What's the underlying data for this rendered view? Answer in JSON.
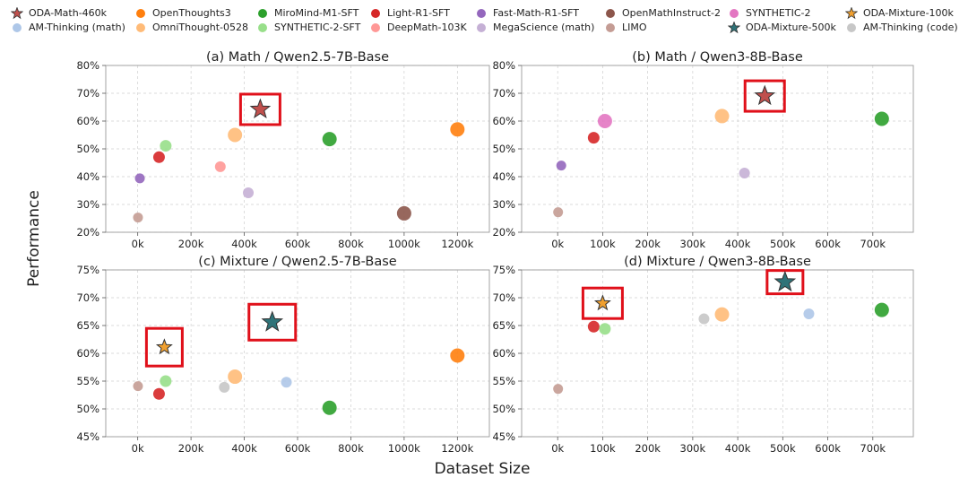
{
  "figure": {
    "ylabel": "Performance",
    "xlabel": "Dataset Size"
  },
  "legend": [
    {
      "label": "ODA-Math-460k",
      "marker": "star",
      "color": "#c0504d"
    },
    {
      "label": "AM-Thinking (math)",
      "marker": "circle",
      "color": "#aec7e8"
    },
    {
      "label": "OpenThoughts3",
      "marker": "circle",
      "color": "#ff7f0e"
    },
    {
      "label": "OmniThought-0528",
      "marker": "circle",
      "color": "#ffbb78"
    },
    {
      "label": "MiroMind-M1-SFT",
      "marker": "circle",
      "color": "#2ca02c"
    },
    {
      "label": "SYNTHETIC-2-SFT",
      "marker": "circle",
      "color": "#98df8a"
    },
    {
      "label": "Light-R1-SFT",
      "marker": "circle",
      "color": "#d62728"
    },
    {
      "label": "DeepMath-103K",
      "marker": "circle",
      "color": "#ff9896"
    },
    {
      "label": "Fast-Math-R1-SFT",
      "marker": "circle",
      "color": "#9467bd"
    },
    {
      "label": "MegaScience (math)",
      "marker": "circle",
      "color": "#c5b0d5"
    },
    {
      "label": "OpenMathInstruct-2",
      "marker": "circle",
      "color": "#8c564b"
    },
    {
      "label": "LIMO",
      "marker": "circle",
      "color": "#c49c94"
    },
    {
      "label": "SYNTHETIC-2",
      "marker": "circle",
      "color": "#e377c2"
    },
    {
      "label": "ODA-Mixture-500k",
      "marker": "star",
      "color": "#2f7378"
    },
    {
      "label": "ODA-Mixture-100k",
      "marker": "star",
      "color": "#f0a030"
    },
    {
      "label": "AM-Thinking (code)",
      "marker": "circle",
      "color": "#c7c7c7"
    }
  ],
  "chart_data": [
    {
      "type": "scatter",
      "title": "(a) Math / Qwen2.5-7B-Base",
      "xlabel": "Dataset Size",
      "ylabel": "Performance",
      "xlim": [
        -120000,
        1320000
      ],
      "ylim": [
        20,
        80
      ],
      "xticks": [
        0,
        200000,
        400000,
        600000,
        800000,
        1000000,
        1200000
      ],
      "xtick_labels": [
        "0k",
        "200k",
        "400k",
        "600k",
        "800k",
        "1000k",
        "1200k"
      ],
      "yticks": [
        20,
        30,
        40,
        50,
        60,
        70,
        80
      ],
      "ytick_labels": [
        "20%",
        "30%",
        "40%",
        "50%",
        "60%",
        "70%",
        "80%"
      ],
      "grid": true,
      "points": [
        {
          "name": "LIMO",
          "x": 1000,
          "y": 25.3
        },
        {
          "name": "Fast-Math-R1-SFT",
          "x": 8000,
          "y": 39.4
        },
        {
          "name": "Light-R1-SFT",
          "x": 80000,
          "y": 47.0
        },
        {
          "name": "SYNTHETIC-2-SFT",
          "x": 105000,
          "y": 51.1
        },
        {
          "name": "DeepMath-103K",
          "x": 310000,
          "y": 43.6
        },
        {
          "name": "OmniThought-0528",
          "x": 365000,
          "y": 55.0
        },
        {
          "name": "MegaScience (math)",
          "x": 415000,
          "y": 34.2
        },
        {
          "name": "ODA-Math-460k",
          "x": 460000,
          "y": 64.2,
          "highlight": true
        },
        {
          "name": "MiroMind-M1-SFT",
          "x": 720000,
          "y": 53.5
        },
        {
          "name": "OpenMathInstruct-2",
          "x": 1000000,
          "y": 26.8
        },
        {
          "name": "OpenThoughts3",
          "x": 1200000,
          "y": 57.0
        }
      ]
    },
    {
      "type": "scatter",
      "title": "(b) Math / Qwen3-8B-Base",
      "xlabel": "Dataset Size",
      "ylabel": "Performance",
      "xlim": [
        -80000,
        790000
      ],
      "ylim": [
        20,
        80
      ],
      "xticks": [
        0,
        100000,
        200000,
        300000,
        400000,
        500000,
        600000,
        700000
      ],
      "xtick_labels": [
        "0k",
        "100k",
        "200k",
        "300k",
        "400k",
        "500k",
        "600k",
        "700k"
      ],
      "yticks": [
        20,
        30,
        40,
        50,
        60,
        70,
        80
      ],
      "ytick_labels": [
        "20%",
        "30%",
        "40%",
        "50%",
        "60%",
        "70%",
        "80%"
      ],
      "grid": true,
      "points": [
        {
          "name": "LIMO",
          "x": 1000,
          "y": 27.2
        },
        {
          "name": "Fast-Math-R1-SFT",
          "x": 8000,
          "y": 44.0
        },
        {
          "name": "Light-R1-SFT",
          "x": 80000,
          "y": 54.0
        },
        {
          "name": "SYNTHETIC-2",
          "x": 105000,
          "y": 60.0
        },
        {
          "name": "OmniThought-0528",
          "x": 365000,
          "y": 61.8
        },
        {
          "name": "MegaScience (math)",
          "x": 415000,
          "y": 41.3
        },
        {
          "name": "ODA-Math-460k",
          "x": 460000,
          "y": 69.0,
          "highlight": true
        },
        {
          "name": "MiroMind-M1-SFT",
          "x": 720000,
          "y": 60.8
        }
      ]
    },
    {
      "type": "scatter",
      "title": "(c) Mixture / Qwen2.5-7B-Base",
      "xlabel": "Dataset Size",
      "ylabel": "Performance",
      "xlim": [
        -120000,
        1320000
      ],
      "ylim": [
        45,
        75
      ],
      "xticks": [
        0,
        200000,
        400000,
        600000,
        800000,
        1000000,
        1200000
      ],
      "xtick_labels": [
        "0k",
        "200k",
        "400k",
        "600k",
        "800k",
        "1000k",
        "1200k"
      ],
      "yticks": [
        45,
        50,
        55,
        60,
        65,
        70,
        75
      ],
      "ytick_labels": [
        "45%",
        "50%",
        "55%",
        "60%",
        "65%",
        "70%",
        "75%"
      ],
      "grid": true,
      "points": [
        {
          "name": "LIMO",
          "x": 1000,
          "y": 54.1
        },
        {
          "name": "Light-R1-SFT",
          "x": 80000,
          "y": 52.7
        },
        {
          "name": "ODA-Mixture-100k",
          "x": 100000,
          "y": 61.1,
          "highlight": true
        },
        {
          "name": "SYNTHETIC-2-SFT",
          "x": 105000,
          "y": 55.0
        },
        {
          "name": "AM-Thinking (code)",
          "x": 325000,
          "y": 53.9
        },
        {
          "name": "OmniThought-0528",
          "x": 365000,
          "y": 55.8
        },
        {
          "name": "ODA-Mixture-500k",
          "x": 505000,
          "y": 65.6,
          "highlight": true
        },
        {
          "name": "AM-Thinking (math)",
          "x": 558000,
          "y": 54.8
        },
        {
          "name": "MiroMind-M1-SFT",
          "x": 720000,
          "y": 50.2
        },
        {
          "name": "OpenThoughts3",
          "x": 1200000,
          "y": 59.6
        }
      ]
    },
    {
      "type": "scatter",
      "title": "(d) Mixture / Qwen3-8B-Base",
      "xlabel": "Dataset Size",
      "ylabel": "Performance",
      "xlim": [
        -80000,
        790000
      ],
      "ylim": [
        45,
        75
      ],
      "xticks": [
        0,
        100000,
        200000,
        300000,
        400000,
        500000,
        600000,
        700000
      ],
      "xtick_labels": [
        "0k",
        "100k",
        "200k",
        "300k",
        "400k",
        "500k",
        "600k",
        "700k"
      ],
      "yticks": [
        45,
        50,
        55,
        60,
        65,
        70,
        75
      ],
      "ytick_labels": [
        "45%",
        "50%",
        "55%",
        "60%",
        "65%",
        "70%",
        "75%"
      ],
      "grid": true,
      "points": [
        {
          "name": "LIMO",
          "x": 1000,
          "y": 53.6
        },
        {
          "name": "Light-R1-SFT",
          "x": 80000,
          "y": 64.8
        },
        {
          "name": "ODA-Mixture-100k",
          "x": 100000,
          "y": 69.0,
          "highlight": true
        },
        {
          "name": "SYNTHETIC-2-SFT",
          "x": 105000,
          "y": 64.4
        },
        {
          "name": "AM-Thinking (code)",
          "x": 325000,
          "y": 66.2
        },
        {
          "name": "OmniThought-0528",
          "x": 365000,
          "y": 67.0
        },
        {
          "name": "ODA-Mixture-500k",
          "x": 505000,
          "y": 72.8,
          "highlight": true
        },
        {
          "name": "AM-Thinking (math)",
          "x": 558000,
          "y": 67.1
        },
        {
          "name": "MiroMind-M1-SFT",
          "x": 720000,
          "y": 67.8
        }
      ]
    }
  ]
}
